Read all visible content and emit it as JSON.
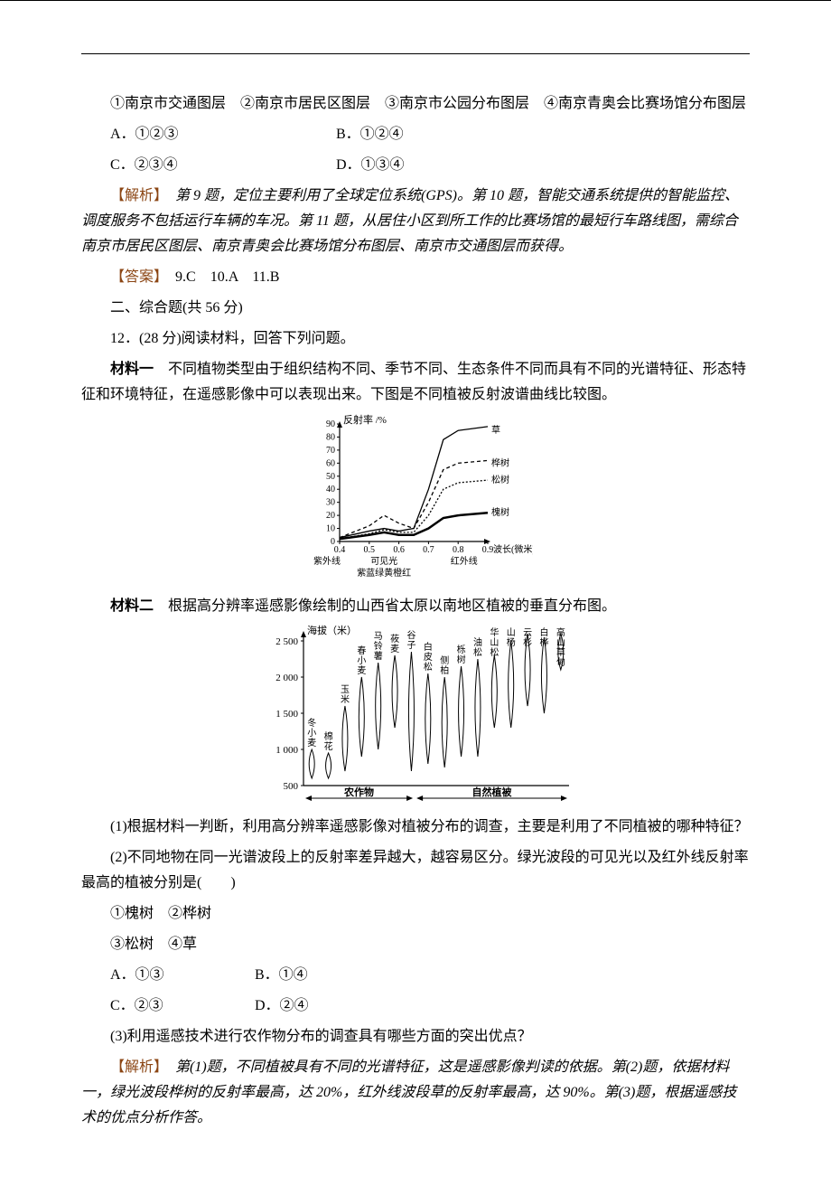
{
  "colors": {
    "text": "#000000",
    "accent": "#8b4513",
    "background": "#ffffff",
    "axis": "#000000",
    "grid": "#cccccc"
  },
  "q11": {
    "stems": "①南京市交通图层　②南京市居民区图层　③南京市公园分布图层　④南京青奥会比赛场馆分布图层",
    "optA": "A．①②③",
    "optB": "B．①②④",
    "optC": "C．②③④",
    "optD": "D．①③④"
  },
  "analysis1": {
    "label": "【解析】",
    "body": "　第 9 题，定位主要利用了全球定位系统(GPS)。第 10 题，智能交通系统提供的智能监控、调度服务不包括运行车辆的车况。第 11 题，从居住小区到所工作的比赛场馆的最短行车路线图，需综合南京市居民区图层、南京青奥会比赛场馆分布图层、南京市交通图层而获得。"
  },
  "answer1": {
    "label": "【答案】",
    "body": "　9.C　10.A　11.B"
  },
  "section2": "二、综合题(共 56 分)",
  "q12": {
    "stem": "12．(28 分)阅读材料，回答下列问题。",
    "mat1_label": "材料一",
    "mat1_body": "　不同植物类型由于组织结构不同、季节不同、生态条件不同而具有不同的光谱特征、形态特征和环境特征，在遥感影像中可以表现出来。下图是不同植被反射波谱曲线比较图。",
    "mat2_label": "材料二",
    "mat2_body": "　根据高分辨率遥感影像绘制的山西省太原以南地区植被的垂直分布图。",
    "sub1": "(1)根据材料一判断，利用高分辨率遥感影像对植被分布的调查，主要是利用了不同植被的哪种特征？",
    "sub2": "(2)不同地物在同一光谱波段上的反射率差异越大，越容易区分。绿光波段的可见光以及红外线反射率最高的植被分别是(　　)",
    "sub2_items1": "①槐树　②桦树",
    "sub2_items2": "③松树　④草",
    "sub2_A": "A．①③",
    "sub2_B": "B．①④",
    "sub2_C": "C．②③",
    "sub2_D": "D．②④",
    "sub3": "(3)利用遥感技术进行农作物分布的调查具有哪些方面的突出优点？"
  },
  "analysis2": {
    "label": "【解析】",
    "body": "　第(1)题，不同植被具有不同的光谱特征，这是遥感影像判读的依据。第(2)题，依据材料一，绿光波段桦树的反射率最高，达 20%，红外线波段草的反射率最高，达 90%。第(3)题，根据遥感技术的优点分析作答。"
  },
  "chart1": {
    "type": "line",
    "title": "",
    "xlabel": "波长(微米)",
    "ylabel": "反射率 /%",
    "ylim": [
      0,
      90
    ],
    "ytick_step": 10,
    "yticks": [
      0,
      10,
      20,
      30,
      40,
      50,
      60,
      70,
      80,
      90
    ],
    "xticks": [
      0.4,
      0.5,
      0.6,
      0.7,
      0.8,
      0.9
    ],
    "xtick_labels": [
      "0.4",
      "0.5",
      "0.6",
      "0.7",
      "0.8",
      "0.9"
    ],
    "x_band_label_top": "紫外线",
    "x_band_label_mid": "可见光",
    "x_band_label_right": "红外线",
    "x_color_labels": "紫蓝绿黄橙红",
    "series": [
      {
        "name": "草",
        "dash": "none",
        "color": "#000000",
        "data": [
          [
            0.4,
            3
          ],
          [
            0.5,
            8
          ],
          [
            0.55,
            10
          ],
          [
            0.6,
            8
          ],
          [
            0.65,
            10
          ],
          [
            0.7,
            40
          ],
          [
            0.75,
            78
          ],
          [
            0.8,
            85
          ],
          [
            0.9,
            88
          ]
        ]
      },
      {
        "name": "桦树",
        "dash": "4,3",
        "color": "#000000",
        "data": [
          [
            0.4,
            3
          ],
          [
            0.5,
            12
          ],
          [
            0.55,
            20
          ],
          [
            0.6,
            14
          ],
          [
            0.65,
            10
          ],
          [
            0.7,
            30
          ],
          [
            0.75,
            55
          ],
          [
            0.8,
            60
          ],
          [
            0.9,
            62
          ]
        ]
      },
      {
        "name": "松树",
        "dash": "2,2",
        "color": "#000000",
        "data": [
          [
            0.4,
            2
          ],
          [
            0.5,
            6
          ],
          [
            0.55,
            9
          ],
          [
            0.6,
            7
          ],
          [
            0.65,
            7
          ],
          [
            0.7,
            20
          ],
          [
            0.75,
            40
          ],
          [
            0.8,
            45
          ],
          [
            0.9,
            47
          ]
        ]
      },
      {
        "name": "槐树",
        "dash": "none",
        "width": 2.5,
        "color": "#000000",
        "data": [
          [
            0.4,
            2
          ],
          [
            0.5,
            5
          ],
          [
            0.55,
            7
          ],
          [
            0.6,
            5
          ],
          [
            0.65,
            5
          ],
          [
            0.7,
            10
          ],
          [
            0.75,
            18
          ],
          [
            0.8,
            20
          ],
          [
            0.9,
            22
          ]
        ]
      }
    ],
    "label_fontsize": 11,
    "axis_color": "#000000",
    "background_color": "#ffffff"
  },
  "chart2": {
    "type": "range-band",
    "ylabel": "海拔（米）",
    "ylim": [
      500,
      2600
    ],
    "yticks": [
      500,
      1000,
      1500,
      2000,
      2500
    ],
    "left_section_label": "农作物",
    "right_section_label": "自然植被",
    "divider_x": 6,
    "items": [
      {
        "name": "冬小麦",
        "x": 0,
        "low": 600,
        "high": 1000,
        "section": "crop"
      },
      {
        "name": "棉花",
        "x": 1,
        "low": 600,
        "high": 950,
        "section": "crop"
      },
      {
        "name": "玉米",
        "x": 2,
        "low": 700,
        "high": 1600,
        "section": "crop"
      },
      {
        "name": "春小麦",
        "x": 3,
        "low": 900,
        "high": 2000,
        "section": "crop"
      },
      {
        "name": "马铃薯",
        "x": 4,
        "low": 1000,
        "high": 2200,
        "section": "crop"
      },
      {
        "name": "莜麦",
        "x": 5,
        "low": 1300,
        "high": 2300,
        "section": "crop"
      },
      {
        "name": "谷子",
        "x": 6,
        "low": 700,
        "high": 2350,
        "section": "crop"
      },
      {
        "name": "白皮松",
        "x": 7,
        "low": 800,
        "high": 2050,
        "section": "nat"
      },
      {
        "name": "侧柏",
        "x": 8,
        "low": 750,
        "high": 2000,
        "section": "nat"
      },
      {
        "name": "栎树",
        "x": 9,
        "low": 900,
        "high": 2150,
        "section": "nat"
      },
      {
        "name": "油松",
        "x": 10,
        "low": 900,
        "high": 2250,
        "section": "nat"
      },
      {
        "name": "华山松",
        "x": 11,
        "low": 1300,
        "high": 2300,
        "section": "nat"
      },
      {
        "name": "山杨",
        "x": 12,
        "low": 1300,
        "high": 2500,
        "section": "nat"
      },
      {
        "name": "云杉",
        "x": 13,
        "low": 1600,
        "high": 2600,
        "section": "nat"
      },
      {
        "name": "白桦",
        "x": 14,
        "low": 1500,
        "high": 2550,
        "section": "nat"
      },
      {
        "name": "高山草甸",
        "x": 15,
        "low": 2100,
        "high": 2600,
        "section": "nat"
      }
    ],
    "label_fontsize": 11,
    "axis_color": "#000000",
    "lens_width": 12
  }
}
